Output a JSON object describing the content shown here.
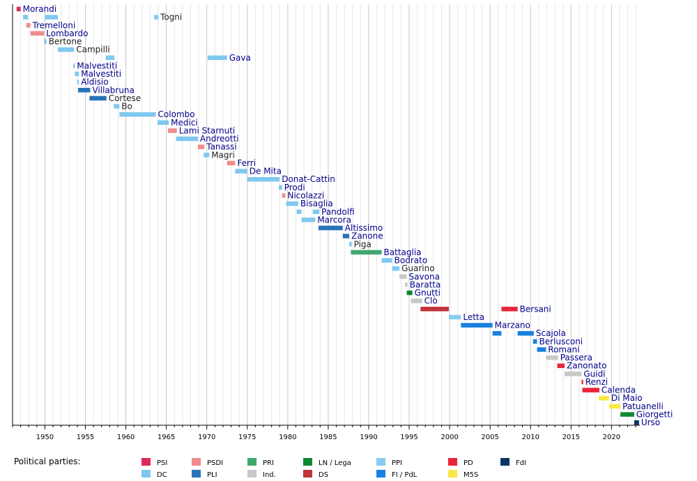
{
  "legend_title": "Political parties:",
  "parties": [
    {
      "key": "PSI",
      "label": "PSI",
      "color": "#dd2a5a"
    },
    {
      "key": "DC",
      "label": "DC",
      "color": "#80c8f0"
    },
    {
      "key": "PSDI",
      "label": "PSDI",
      "color": "#f08c8c"
    },
    {
      "key": "PLI",
      "label": "PLI",
      "color": "#2a72b8"
    },
    {
      "key": "PRI",
      "label": "PRI",
      "color": "#3fa86e"
    },
    {
      "key": "Ind",
      "label": "Ind.",
      "color": "#c8c8c8"
    },
    {
      "key": "LN",
      "label": "LN / Lega",
      "color": "#118833"
    },
    {
      "key": "DS",
      "label": "DS",
      "color": "#c0343a"
    },
    {
      "key": "PPI",
      "label": "PPI",
      "color": "#88ccf0"
    },
    {
      "key": "FI",
      "label": "FI / PdL",
      "color": "#1880e0"
    },
    {
      "key": "PD",
      "label": "PD",
      "color": "#e8253a"
    },
    {
      "key": "M5S",
      "label": "M5S",
      "color": "#fae846"
    },
    {
      "key": "FdI",
      "label": "FdI",
      "color": "#0c3468"
    }
  ],
  "chart_data": {
    "type": "timeline",
    "x_range": [
      1946,
      2023.5
    ],
    "x_ticks": [
      1950,
      1955,
      1960,
      1965,
      1970,
      1975,
      1980,
      1985,
      1990,
      1995,
      2000,
      2005,
      2010,
      2015,
      2020
    ],
    "rows": [
      {
        "name": "Morandi",
        "label_style": "party",
        "segments": [
          {
            "start": 1946.5,
            "end": 1947.0,
            "party": "PSI"
          }
        ]
      },
      {
        "name": "Togni",
        "label_style": "plain",
        "segments": [
          {
            "start": 1947.3,
            "end": 1947.9,
            "party": "DC"
          },
          {
            "start": 1950.0,
            "end": 1951.6,
            "party": "DC"
          },
          {
            "start": 1963.5,
            "end": 1964.0,
            "party": "DC"
          }
        ]
      },
      {
        "name": "Tremelloni",
        "label_style": "party",
        "segments": [
          {
            "start": 1947.7,
            "end": 1948.2,
            "party": "PSDI"
          }
        ]
      },
      {
        "name": "Lombardo",
        "label_style": "party",
        "segments": [
          {
            "start": 1948.2,
            "end": 1949.9,
            "party": "PSDI"
          }
        ]
      },
      {
        "name": "Bertone",
        "label_style": "plain",
        "segments": [
          {
            "start": 1949.9,
            "end": 1950.2,
            "party": "DC"
          }
        ]
      },
      {
        "name": "Campilli",
        "label_style": "plain",
        "segments": [
          {
            "start": 1951.6,
            "end": 1953.6,
            "party": "DC"
          }
        ]
      },
      {
        "name": "Gava",
        "label_style": "party",
        "segments": [
          {
            "start": 1957.5,
            "end": 1958.6,
            "party": "DC"
          },
          {
            "start": 1970.1,
            "end": 1972.5,
            "party": "DC"
          }
        ]
      },
      {
        "name": "Malvestiti",
        "label_style": "party",
        "segments": [
          {
            "start": 1953.5,
            "end": 1953.7,
            "party": "DC"
          }
        ]
      },
      {
        "name": "Malvestiti",
        "label_style": "party",
        "segments": [
          {
            "start": 1953.7,
            "end": 1954.2,
            "party": "DC"
          }
        ]
      },
      {
        "name": "Aldisio",
        "label_style": "party",
        "segments": [
          {
            "start": 1954.0,
            "end": 1954.2,
            "party": "DC"
          }
        ]
      },
      {
        "name": "Villabruna",
        "label_style": "party",
        "segments": [
          {
            "start": 1954.1,
            "end": 1955.6,
            "party": "PLI"
          }
        ]
      },
      {
        "name": "Cortese",
        "label_style": "plain",
        "segments": [
          {
            "start": 1955.5,
            "end": 1957.6,
            "party": "PLI"
          }
        ]
      },
      {
        "name": "Bo",
        "label_style": "plain",
        "segments": [
          {
            "start": 1958.5,
            "end": 1959.2,
            "party": "DC"
          }
        ]
      },
      {
        "name": "Colombo",
        "label_style": "party",
        "segments": [
          {
            "start": 1959.2,
            "end": 1963.7,
            "party": "DC"
          }
        ]
      },
      {
        "name": "Medici",
        "label_style": "party",
        "segments": [
          {
            "start": 1963.9,
            "end": 1965.3,
            "party": "DC"
          }
        ]
      },
      {
        "name": "Lami Starnuti",
        "label_style": "party",
        "segments": [
          {
            "start": 1965.2,
            "end": 1966.3,
            "party": "PSDI"
          }
        ]
      },
      {
        "name": "Andreotti",
        "label_style": "party",
        "segments": [
          {
            "start": 1966.2,
            "end": 1968.9,
            "party": "DC"
          }
        ]
      },
      {
        "name": "Tanassi",
        "label_style": "party",
        "segments": [
          {
            "start": 1968.9,
            "end": 1969.7,
            "party": "PSDI"
          }
        ]
      },
      {
        "name": "Magri",
        "label_style": "plain",
        "segments": [
          {
            "start": 1969.6,
            "end": 1970.3,
            "party": "DC"
          }
        ]
      },
      {
        "name": "Ferri",
        "label_style": "party",
        "segments": [
          {
            "start": 1972.5,
            "end": 1973.5,
            "party": "PSDI"
          }
        ]
      },
      {
        "name": "De Mita",
        "label_style": "party",
        "segments": [
          {
            "start": 1973.5,
            "end": 1975.0,
            "party": "DC"
          }
        ]
      },
      {
        "name": "Donat-Cattin",
        "label_style": "party",
        "segments": [
          {
            "start": 1975.0,
            "end": 1979.0,
            "party": "DC"
          }
        ]
      },
      {
        "name": "Prodi",
        "label_style": "party",
        "segments": [
          {
            "start": 1978.9,
            "end": 1979.3,
            "party": "DC"
          }
        ]
      },
      {
        "name": "Nicolazzi",
        "label_style": "party",
        "segments": [
          {
            "start": 1979.3,
            "end": 1979.7,
            "party": "PSDI"
          }
        ]
      },
      {
        "name": "Bisaglia",
        "label_style": "party",
        "segments": [
          {
            "start": 1979.8,
            "end": 1981.3,
            "party": "DC"
          }
        ]
      },
      {
        "name": "Pandolfi",
        "label_style": "party",
        "segments": [
          {
            "start": 1981.1,
            "end": 1981.7,
            "party": "DC"
          },
          {
            "start": 1983.1,
            "end": 1983.9,
            "party": "DC"
          }
        ]
      },
      {
        "name": "Marcora",
        "label_style": "party",
        "segments": [
          {
            "start": 1981.7,
            "end": 1983.4,
            "party": "DC"
          }
        ]
      },
      {
        "name": "Altissimo",
        "label_style": "party",
        "segments": [
          {
            "start": 1983.8,
            "end": 1986.8,
            "party": "PLI"
          }
        ]
      },
      {
        "name": "Zanone",
        "label_style": "party",
        "segments": [
          {
            "start": 1986.8,
            "end": 1987.6,
            "party": "PLI"
          }
        ]
      },
      {
        "name": "Piga",
        "label_style": "plain",
        "segments": [
          {
            "start": 1987.6,
            "end": 1987.9,
            "party": "DC"
          }
        ]
      },
      {
        "name": "Battaglia",
        "label_style": "party",
        "segments": [
          {
            "start": 1987.8,
            "end": 1991.6,
            "party": "PRI"
          }
        ]
      },
      {
        "name": "Bodrato",
        "label_style": "party",
        "segments": [
          {
            "start": 1991.6,
            "end": 1992.9,
            "party": "DC"
          }
        ]
      },
      {
        "name": "Guarino",
        "label_style": "plain",
        "segments": [
          {
            "start": 1992.9,
            "end": 1993.8,
            "party": "DC"
          }
        ]
      },
      {
        "name": "Savona",
        "label_style": "party",
        "segments": [
          {
            "start": 1993.8,
            "end": 1994.7,
            "party": "Ind"
          }
        ]
      },
      {
        "name": "Baratta",
        "label_style": "party",
        "segments": [
          {
            "start": 1994.5,
            "end": 1994.8,
            "party": "Ind"
          }
        ]
      },
      {
        "name": "Gnutti",
        "label_style": "party",
        "segments": [
          {
            "start": 1994.7,
            "end": 1995.4,
            "party": "LN"
          }
        ]
      },
      {
        "name": "Clò",
        "label_style": "party",
        "segments": [
          {
            "start": 1995.2,
            "end": 1996.6,
            "party": "Ind"
          }
        ]
      },
      {
        "name": "Bersani",
        "label_style": "party",
        "segments": [
          {
            "start": 1996.4,
            "end": 1999.9,
            "party": "DS"
          },
          {
            "start": 2006.4,
            "end": 2008.4,
            "party": "PD"
          }
        ]
      },
      {
        "name": "Letta",
        "label_style": "party",
        "segments": [
          {
            "start": 1999.9,
            "end": 2001.4,
            "party": "PPI"
          }
        ]
      },
      {
        "name": "Marzano",
        "label_style": "party",
        "segments": [
          {
            "start": 2001.4,
            "end": 2005.3,
            "party": "FI"
          }
        ]
      },
      {
        "name": "Scajola",
        "label_style": "party",
        "segments": [
          {
            "start": 2005.3,
            "end": 2006.4,
            "party": "FI"
          },
          {
            "start": 2008.4,
            "end": 2010.4,
            "party": "FI"
          }
        ]
      },
      {
        "name": "Berlusconi",
        "label_style": "party",
        "segments": [
          {
            "start": 2010.3,
            "end": 2010.8,
            "party": "FI"
          }
        ]
      },
      {
        "name": "Romani",
        "label_style": "party",
        "segments": [
          {
            "start": 2010.8,
            "end": 2011.9,
            "party": "FI"
          }
        ]
      },
      {
        "name": "Passera",
        "label_style": "party",
        "segments": [
          {
            "start": 2011.9,
            "end": 2013.4,
            "party": "Ind"
          }
        ]
      },
      {
        "name": "Zanonato",
        "label_style": "party",
        "segments": [
          {
            "start": 2013.3,
            "end": 2014.2,
            "party": "PD"
          }
        ]
      },
      {
        "name": "Guidi",
        "label_style": "party",
        "segments": [
          {
            "start": 2014.2,
            "end": 2016.3,
            "party": "Ind"
          }
        ]
      },
      {
        "name": "Renzi",
        "label_style": "party",
        "segments": [
          {
            "start": 2016.3,
            "end": 2016.5,
            "party": "PD"
          }
        ]
      },
      {
        "name": "Calenda",
        "label_style": "party",
        "segments": [
          {
            "start": 2016.4,
            "end": 2018.5,
            "party": "PD"
          }
        ]
      },
      {
        "name": "Di Maio",
        "label_style": "party",
        "segments": [
          {
            "start": 2018.4,
            "end": 2019.7,
            "party": "M5S"
          }
        ]
      },
      {
        "name": "Patuanelli",
        "label_style": "party",
        "segments": [
          {
            "start": 2019.7,
            "end": 2021.1,
            "party": "M5S"
          }
        ]
      },
      {
        "name": "Giorgetti",
        "label_style": "party",
        "segments": [
          {
            "start": 2021.1,
            "end": 2022.8,
            "party": "LN"
          }
        ]
      },
      {
        "name": "Urso",
        "label_style": "party",
        "segments": [
          {
            "start": 2022.8,
            "end": 2023.4,
            "party": "FdI"
          }
        ]
      }
    ]
  }
}
